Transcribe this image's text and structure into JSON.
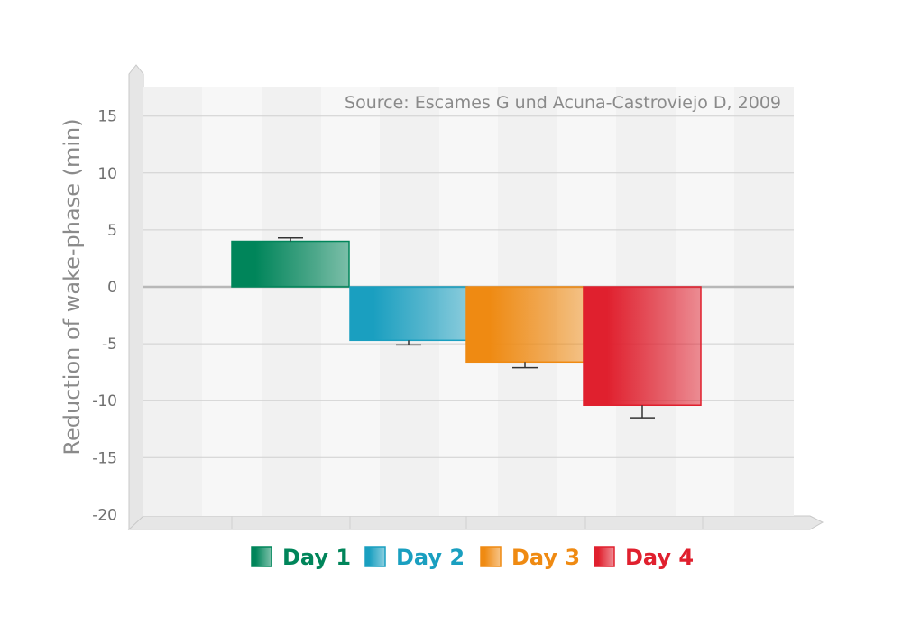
{
  "chart_data": {
    "type": "bar",
    "source": "Source: Escames G und Acuna-Castroviejo D, 2009",
    "ylabel": "Reduction of wake-phase (min)",
    "xlabel": "",
    "ylim": [
      -20,
      17
    ],
    "yticks": [
      "15",
      "10",
      "5",
      "0",
      "-5",
      "-10",
      "-15",
      "-20"
    ],
    "grid": true,
    "legend_position": "bottom",
    "series": [
      {
        "name": "Day 1",
        "value": 4.0,
        "error": 0.3,
        "color": "#00855a"
      },
      {
        "name": "Day 2",
        "value": -4.7,
        "error": 0.4,
        "color": "#1a9fc0"
      },
      {
        "name": "Day 3",
        "value": -6.6,
        "error": 0.5,
        "color": "#ef8a12"
      },
      {
        "name": "Day 4",
        "value": -10.4,
        "error": 1.1,
        "color": "#e0202e"
      }
    ]
  }
}
